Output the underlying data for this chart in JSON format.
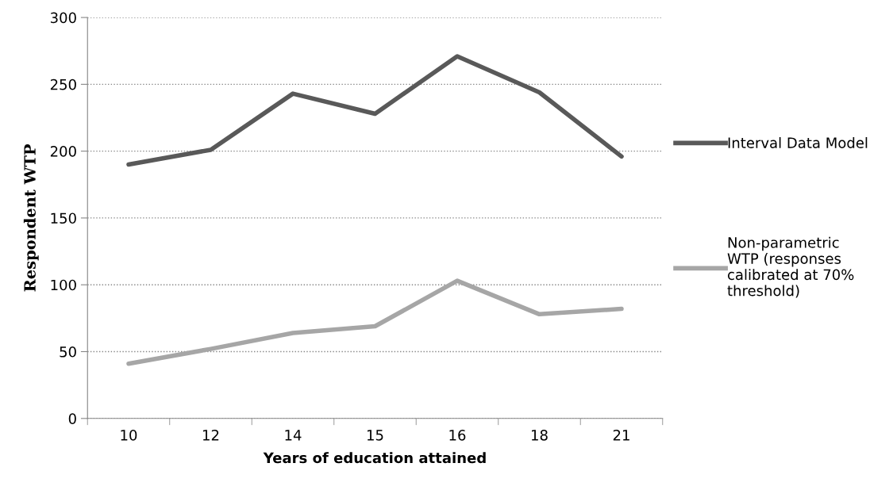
{
  "chart_data": {
    "type": "line",
    "xlabel": "Years of education attained",
    "ylabel": "Respondent WTP",
    "categories": [
      "10",
      "12",
      "14",
      "15",
      "16",
      "18",
      "21"
    ],
    "series": [
      {
        "name": "Interval Data Model",
        "color": "#595959",
        "values": [
          190,
          201,
          243,
          228,
          271,
          244,
          196
        ]
      },
      {
        "name": "Non-parametric\nWTP (responses\ncalibrated at 70%\nthreshold)",
        "color": "#a6a6a6",
        "values": [
          41,
          52,
          64,
          69,
          103,
          78,
          82
        ]
      }
    ],
    "ylim": [
      0,
      300
    ],
    "yticks": [
      0,
      50,
      100,
      150,
      200,
      250,
      300
    ],
    "grid": "y",
    "legend": "right",
    "marker": "none",
    "line_style": "solid"
  }
}
